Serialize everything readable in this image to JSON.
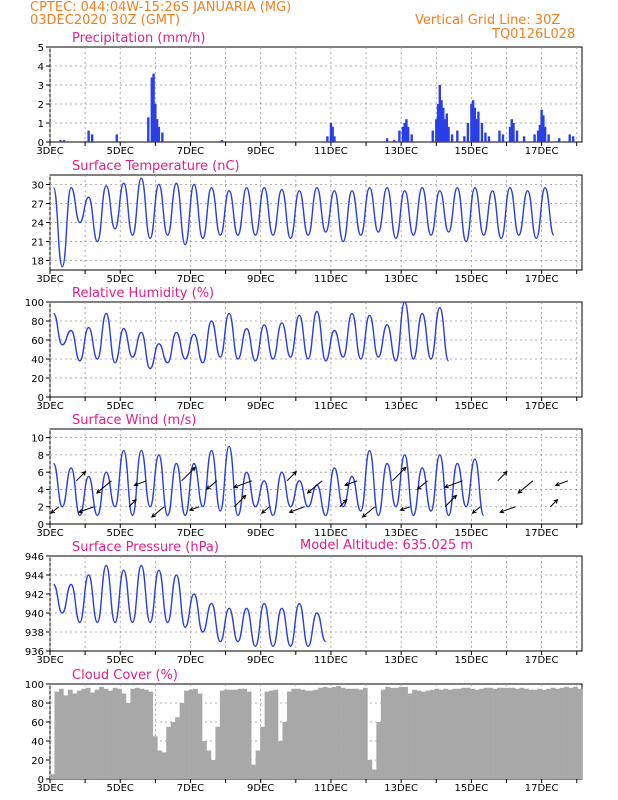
{
  "header": {
    "station": "CPTEC:    044:04W-15:26S   JANUARIA (MG)",
    "date": "03DEC2020 30Z (GMT)",
    "grid": "Vertical Grid Line: 30Z",
    "code": "TQ0126L028",
    "altitude": "Model Altitude: 635.025 m"
  },
  "colors": {
    "line": "#2a3fdc",
    "bar": "#2a3fe8",
    "cloud": "#a8a8a8",
    "title": "#e0208a",
    "header": "#f08020"
  },
  "chart_data": [
    {
      "type": "bar",
      "title": "Precipitation (mm/h)",
      "ylim": [
        0,
        5
      ],
      "yticks": [
        "0",
        "1",
        "2",
        "3",
        "4",
        "5"
      ],
      "xticks": [
        "3DEC",
        "5DEC",
        "7DEC",
        "9DEC",
        "11DEC",
        "13DEC",
        "15DEC",
        "17DEC"
      ],
      "x": [
        3.3,
        3.4,
        4.1,
        4.2,
        4.9,
        5.8,
        5.9,
        5.95,
        6.0,
        6.05,
        6.1,
        6.2,
        7.9,
        10.9,
        11.0,
        11.05,
        11.1,
        12.6,
        12.8,
        12.95,
        13.05,
        13.1,
        13.15,
        13.2,
        13.3,
        13.9,
        14.0,
        14.05,
        14.1,
        14.15,
        14.2,
        14.25,
        14.3,
        14.35,
        14.45,
        14.6,
        14.8,
        14.9,
        15.0,
        15.05,
        15.1,
        15.15,
        15.2,
        15.3,
        15.4,
        15.5,
        15.8,
        15.9,
        16.1,
        16.15,
        16.2,
        16.3,
        16.5,
        16.8,
        16.9,
        16.95,
        17.0,
        17.05,
        17.1,
        17.2,
        17.5,
        17.8,
        17.9
      ],
      "values": [
        0.1,
        0.1,
        0.6,
        0.4,
        0.4,
        1.3,
        3.4,
        3.6,
        2.0,
        1.2,
        0.8,
        0.5,
        0.1,
        0.3,
        1.0,
        0.8,
        0.3,
        0.2,
        0.1,
        0.6,
        0.8,
        1.0,
        1.2,
        0.8,
        0.4,
        0.6,
        1.2,
        2.0,
        3.0,
        2.2,
        1.8,
        1.2,
        1.5,
        0.8,
        0.4,
        0.6,
        0.3,
        1.0,
        2.0,
        2.2,
        1.8,
        1.2,
        1.6,
        1.0,
        0.5,
        0.3,
        0.6,
        0.4,
        0.8,
        1.2,
        1.0,
        0.6,
        0.3,
        0.4,
        0.6,
        0.9,
        1.7,
        1.4,
        0.8,
        0.4,
        0.2,
        0.4,
        0.3
      ]
    },
    {
      "type": "line",
      "title": "Surface Temperature (nC)",
      "ylim": [
        16.5,
        31.5
      ],
      "yticks": [
        "18",
        "21",
        "24",
        "27",
        "30"
      ],
      "xticks": [
        "3DEC",
        "5DEC",
        "7DEC",
        "9DEC",
        "11DEC",
        "13DEC",
        "15DEC",
        "17DEC"
      ],
      "max": [
        29.5,
        29.5,
        28.0,
        29.8,
        30.2,
        31.0,
        30.0,
        30.2,
        30.0,
        29.5,
        29.0,
        29.5,
        29.5,
        29.2,
        29.0,
        29.5,
        29.0,
        29.0,
        29.5,
        29.5,
        29.0,
        29.5,
        29.0,
        29.5,
        29.5,
        29.0,
        29.5,
        29.0,
        29.5
      ],
      "min": [
        17.0,
        24.0,
        21.0,
        23.0,
        22.0,
        21.5,
        22.0,
        20.5,
        21.5,
        22.0,
        22.0,
        22.0,
        22.0,
        21.5,
        22.0,
        22.5,
        21.0,
        22.0,
        22.5,
        21.5,
        22.0,
        22.0,
        22.5,
        21.0,
        22.0,
        21.5,
        22.0,
        21.5,
        22.0
      ]
    },
    {
      "type": "line",
      "title": "Relative Humidity (%)",
      "ylim": [
        0,
        100
      ],
      "yticks": [
        "0",
        "20",
        "40",
        "60",
        "80",
        "100"
      ],
      "xticks": [
        "3DEC",
        "5DEC",
        "7DEC",
        "9DEC",
        "11DEC",
        "13DEC",
        "15DEC",
        "17DEC"
      ],
      "max": [
        88,
        70,
        73,
        88,
        72,
        68,
        56,
        68,
        66,
        80,
        88,
        72,
        76,
        78,
        86,
        90,
        70,
        88,
        86,
        76,
        100,
        88,
        94
      ],
      "min": [
        55,
        38,
        40,
        36,
        42,
        30,
        36,
        40,
        36,
        42,
        40,
        38,
        40,
        42,
        40,
        38,
        42,
        40,
        42,
        38,
        40,
        40,
        38
      ]
    },
    {
      "type": "line",
      "title": "Surface Wind (m/s)",
      "ylim": [
        0,
        11
      ],
      "yticks": [
        "0",
        "2",
        "4",
        "6",
        "8",
        "10"
      ],
      "xticks": [
        "3DEC",
        "5DEC",
        "7DEC",
        "9DEC",
        "11DEC",
        "13DEC",
        "15DEC",
        "17DEC"
      ],
      "max": [
        7,
        6.5,
        5.5,
        6,
        8.5,
        8.5,
        8,
        7,
        7,
        8.5,
        9,
        6,
        5,
        6,
        5,
        4.5,
        6.5,
        5.5,
        8.5,
        7,
        8,
        6.5,
        8,
        7,
        7.5
      ],
      "min": [
        2,
        1,
        1,
        2,
        1,
        2,
        1,
        1,
        2,
        1.5,
        1,
        2,
        1,
        2,
        2,
        1,
        2,
        1.5,
        1,
        2,
        1,
        1.5,
        1,
        2,
        1
      ]
    },
    {
      "type": "line",
      "title": "Surface Pressure (hPa)",
      "ylim": [
        936,
        946
      ],
      "yticks": [
        "936",
        "938",
        "940",
        "942",
        "944",
        "946"
      ],
      "xticks": [
        "3DEC",
        "5DEC",
        "7DEC",
        "9DEC",
        "11DEC",
        "13DEC",
        "15DEC",
        "17DEC"
      ],
      "max": [
        943,
        943,
        944,
        945,
        944.5,
        945,
        944.5,
        944,
        942,
        941,
        940.5,
        940.5,
        941,
        940.5,
        941,
        940
      ],
      "min": [
        940,
        939,
        939,
        939,
        939,
        939,
        939,
        938.5,
        938,
        937,
        937,
        936.5,
        936.5,
        936.5,
        936.5,
        937
      ]
    },
    {
      "type": "area",
      "title": "Cloud Cover (%)",
      "ylim": [
        0,
        100
      ],
      "yticks": [
        "0",
        "20",
        "40",
        "60",
        "80",
        "100"
      ],
      "xticks": [
        "3DEC",
        "5DEC",
        "7DEC",
        "9DEC",
        "11DEC",
        "13DEC",
        "15DEC",
        "17DEC"
      ],
      "values": [
        5,
        92,
        95,
        88,
        94,
        90,
        93,
        95,
        96,
        91,
        94,
        97,
        95,
        93,
        96,
        95,
        90,
        80,
        95,
        96,
        95,
        94,
        92,
        45,
        30,
        28,
        55,
        60,
        65,
        80,
        93,
        94,
        95,
        90,
        40,
        30,
        20,
        55,
        93,
        94,
        94,
        94,
        95,
        95,
        92,
        15,
        30,
        55,
        92,
        93,
        94,
        40,
        60,
        92,
        95,
        95,
        94,
        93,
        93,
        94,
        96,
        97,
        96,
        97,
        98,
        96,
        95,
        95,
        95,
        94,
        96,
        20,
        10,
        60,
        94,
        97,
        96,
        96,
        97,
        97,
        90,
        94,
        93,
        92,
        93,
        94,
        95,
        94,
        95,
        94,
        95,
        95,
        96,
        96,
        95,
        94,
        95,
        96,
        96,
        95,
        96,
        96,
        96,
        96,
        95,
        96,
        95,
        94,
        94,
        95,
        94,
        95,
        96,
        95,
        96,
        97,
        96,
        97,
        95
      ]
    }
  ]
}
